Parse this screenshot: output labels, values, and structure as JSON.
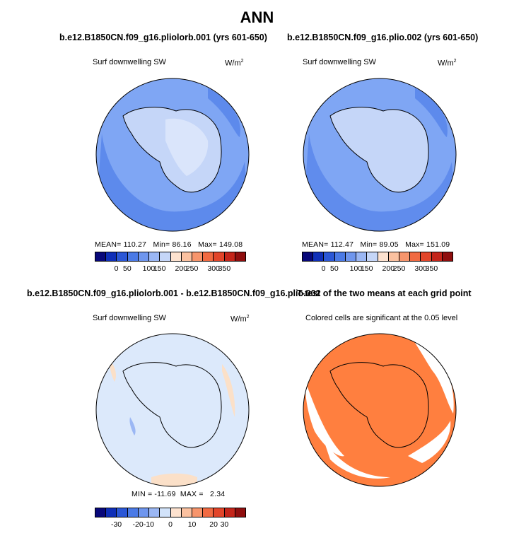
{
  "main_title": "ANN",
  "chart_data": [
    {
      "type": "heatmap",
      "projection": "south-polar-stereographic",
      "title": "b.e12.B1850CN.f09_g16.pliolorb.001 (yrs 601-650)",
      "variable": "Surf downwelling SW",
      "units": "W/m",
      "units_exp": "2",
      "stats_text": {
        "mean_label": "MEAN=",
        "mean": "110.27",
        "min_label": "Min=",
        "min": "86.16",
        "max_label": "Max=",
        "max": "149.08"
      },
      "mean": 110.27,
      "min": 86.16,
      "max": 149.08,
      "colorbar_ticks": [
        "0",
        "50",
        "100",
        "150",
        "200",
        "250",
        "300",
        "350"
      ],
      "colorbar_colors": [
        "#08087a",
        "#0f2fb8",
        "#2b57d6",
        "#4b7ae6",
        "#6f96ee",
        "#9bb7f4",
        "#c5d6f8",
        "#fde2cf",
        "#fbc1a0",
        "#f7956c",
        "#f16a42",
        "#e2452a",
        "#c4251a",
        "#8f0e0e"
      ]
    },
    {
      "type": "heatmap",
      "projection": "south-polar-stereographic",
      "title": "b.e12.B1850CN.f09_g16.plio.002 (yrs 601-650)",
      "variable": "Surf downwelling SW",
      "units": "W/m",
      "units_exp": "2",
      "stats_text": {
        "mean_label": "MEAN=",
        "mean": "112.47",
        "min_label": "Min=",
        "min": "89.05",
        "max_label": "Max=",
        "max": "151.09"
      },
      "mean": 112.47,
      "min": 89.05,
      "max": 151.09,
      "colorbar_ticks": [
        "0",
        "50",
        "100",
        "150",
        "200",
        "250",
        "300",
        "350"
      ],
      "colorbar_colors": [
        "#08087a",
        "#0f2fb8",
        "#2b57d6",
        "#4b7ae6",
        "#6f96ee",
        "#9bb7f4",
        "#c5d6f8",
        "#fde2cf",
        "#fbc1a0",
        "#f7956c",
        "#f16a42",
        "#e2452a",
        "#c4251a",
        "#8f0e0e"
      ]
    },
    {
      "type": "heatmap",
      "projection": "south-polar-stereographic",
      "title": "b.e12.B1850CN.f09_g16.pliolorb.001 - b.e12.B1850CN.f09_g16.plio.002",
      "variable": "Surf downwelling SW",
      "units": "W/m",
      "units_exp": "2",
      "stats_text": {
        "min_label": "MIN =",
        "min": "-11.69",
        "max_label": "MAX =",
        "max": "2.34"
      },
      "min": -11.69,
      "max": 2.34,
      "colorbar_ticks": [
        "-30",
        "-20",
        "-10",
        "0",
        "10",
        "20",
        "30"
      ],
      "colorbar_colors": [
        "#08087a",
        "#0f2fb8",
        "#2b57d6",
        "#4b7ae6",
        "#6f96ee",
        "#9bb7f4",
        "#d2e3fa",
        "#fde2cf",
        "#fbc1a0",
        "#f7956c",
        "#f16a42",
        "#e2452a",
        "#c4251a",
        "#8f0e0e"
      ]
    },
    {
      "type": "heatmap",
      "projection": "south-polar-stereographic",
      "title": "T-test of the two means at each grid point",
      "subtitle": "Colored cells are significant at the 0.05 level",
      "significance_color": "#ff7f3f"
    }
  ],
  "colors": {
    "ocean_mid": "#7fa6f4",
    "ocean_band": "#5d8aec",
    "land": "#c5d6f8",
    "land_light": "#dae5fb",
    "diff_bg": "#dce9fb",
    "diff_pos": "#fbe0c8",
    "diff_neg": "#9bb7f4",
    "signif": "#ff7f3f"
  }
}
